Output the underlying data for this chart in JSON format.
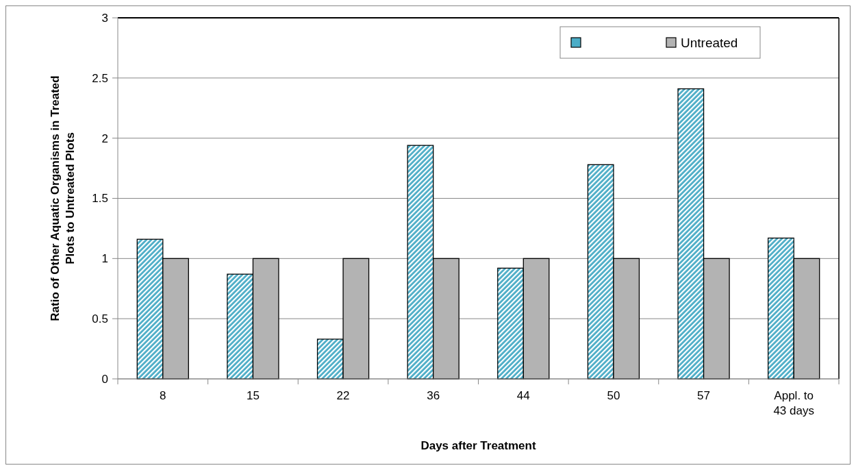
{
  "chart_data": {
    "type": "bar",
    "xlabel": "Days after Treatment",
    "ylabel": "Ratio of Other Aquatic Organisms in Treated Plots to Untreated Plots",
    "categories": [
      "8",
      "15",
      "22",
      "36",
      "44",
      "50",
      "57",
      "Appl. to 43 days"
    ],
    "series": [
      {
        "color": "#4bacc6",
        "values": [
          1.16,
          0.87,
          0.33,
          1.94,
          0.92,
          1.78,
          2.41,
          1.17
        ]
      },
      {
        "name": "Untreated",
        "color": "#b3b3b3",
        "values": [
          1,
          1,
          1,
          1,
          1,
          1,
          1,
          1
        ]
      }
    ],
    "ylim": [
      0,
      3
    ],
    "yticks": [
      0,
      0.5,
      1,
      1.5,
      2,
      2.5,
      3
    ],
    "grid": "y",
    "legend": "top right"
  }
}
